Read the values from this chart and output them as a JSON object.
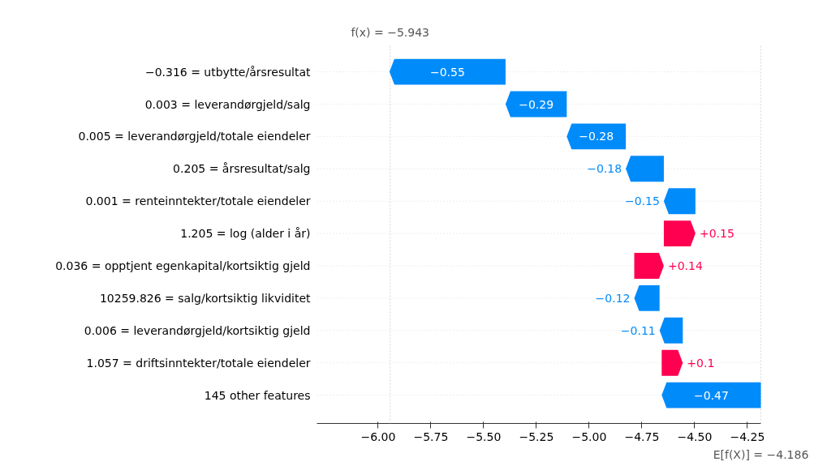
{
  "chart_data": {
    "type": "bar",
    "orientation": "horizontal",
    "categories": [
      "−0.316 = utbytte/årsresultat",
      "0.003 = leverandørgjeld/salg",
      "0.005 = leverandørgjeld/totale eiendeler",
      "0.205 = årsresultat/salg",
      "0.001 = renteinntekter/totale eiendeler",
      "1.205 = log (alder i år)",
      "0.036 = opptjent egenkapital/kortsiktig gjeld",
      "10259.826 = salg/kortsiktig likviditet",
      "0.006 = leverandørgjeld/kortsiktig gjeld",
      "1.057 = driftsinntekter/totale eiendeler",
      "145 other features"
    ],
    "values": [
      -0.55,
      -0.29,
      -0.28,
      -0.18,
      -0.15,
      0.15,
      0.14,
      -0.12,
      -0.11,
      0.1,
      -0.47
    ],
    "base": [
      -5.396,
      -5.106,
      -4.826,
      -4.646,
      -4.496,
      -4.646,
      -4.786,
      -4.666,
      -4.556,
      -4.656,
      -4.186
    ],
    "colors": [
      "#008bfb",
      "#008bfb",
      "#008bfb",
      "#008bfb",
      "#008bfb",
      "#ff0051",
      "#ff0051",
      "#008bfb",
      "#008bfb",
      "#ff0051",
      "#008bfb"
    ],
    "value_labels": [
      "−0.55",
      "−0.29",
      "−0.28",
      "−0.18",
      "−0.15",
      "+0.15",
      "+0.14",
      "−0.12",
      "−0.11",
      "+0.1",
      "−0.47"
    ],
    "xlim": [
      -6.29,
      -4.186
    ],
    "xticks": [
      {
        "value": -6.0,
        "label": "−6.00"
      },
      {
        "value": -5.75,
        "label": "−5.75"
      },
      {
        "value": -5.5,
        "label": "−5.50"
      },
      {
        "value": -5.25,
        "label": "−5.25"
      },
      {
        "value": -5.0,
        "label": "−5.00"
      },
      {
        "value": -4.75,
        "label": "−4.75"
      },
      {
        "value": -4.5,
        "label": "−4.50"
      },
      {
        "value": -4.25,
        "label": "−4.25"
      }
    ],
    "ref_lines": [
      {
        "axis": "x",
        "value": -5.943,
        "label": "f(x) = −5.943"
      },
      {
        "axis": "x",
        "value": -4.186,
        "label": "E[f(X)] = −4.186"
      }
    ],
    "grid": "y"
  }
}
